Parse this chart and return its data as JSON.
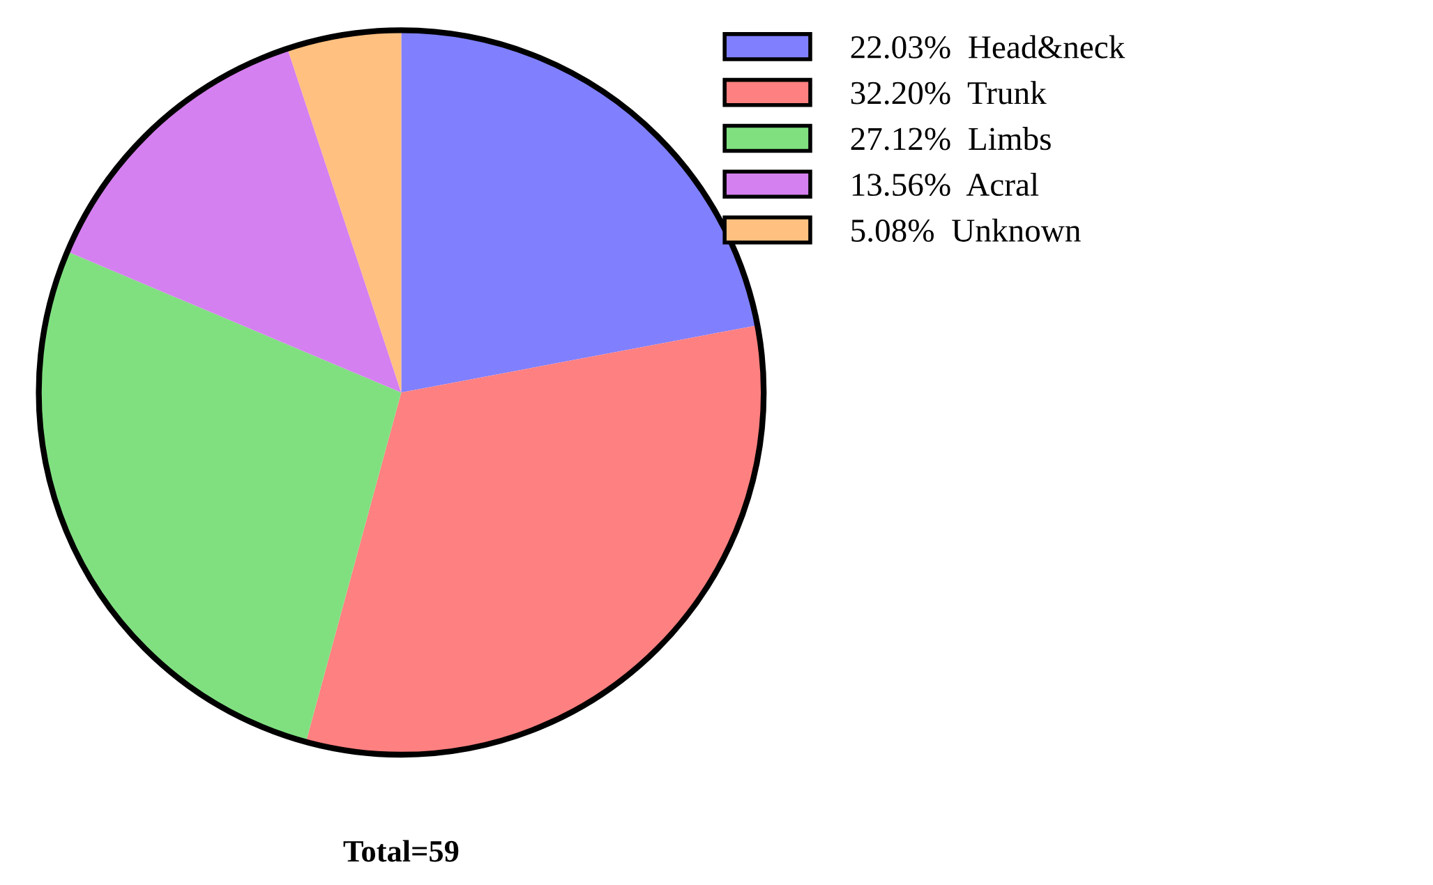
{
  "chart_data": {
    "type": "pie",
    "categories": [
      "Head&neck",
      "Trunk",
      "Limbs",
      "Acral",
      "Unknown"
    ],
    "values": [
      22.03,
      32.2,
      27.12,
      13.56,
      5.08
    ],
    "value_labels": [
      "22.03%",
      "32.20%",
      "27.12%",
      "13.56%",
      "5.08%"
    ],
    "colors": [
      "#8080ff",
      "#ff8080",
      "#80e080",
      "#d580f0",
      "#ffc080"
    ],
    "legend": "top right",
    "annotations": [
      "Total=59"
    ]
  }
}
